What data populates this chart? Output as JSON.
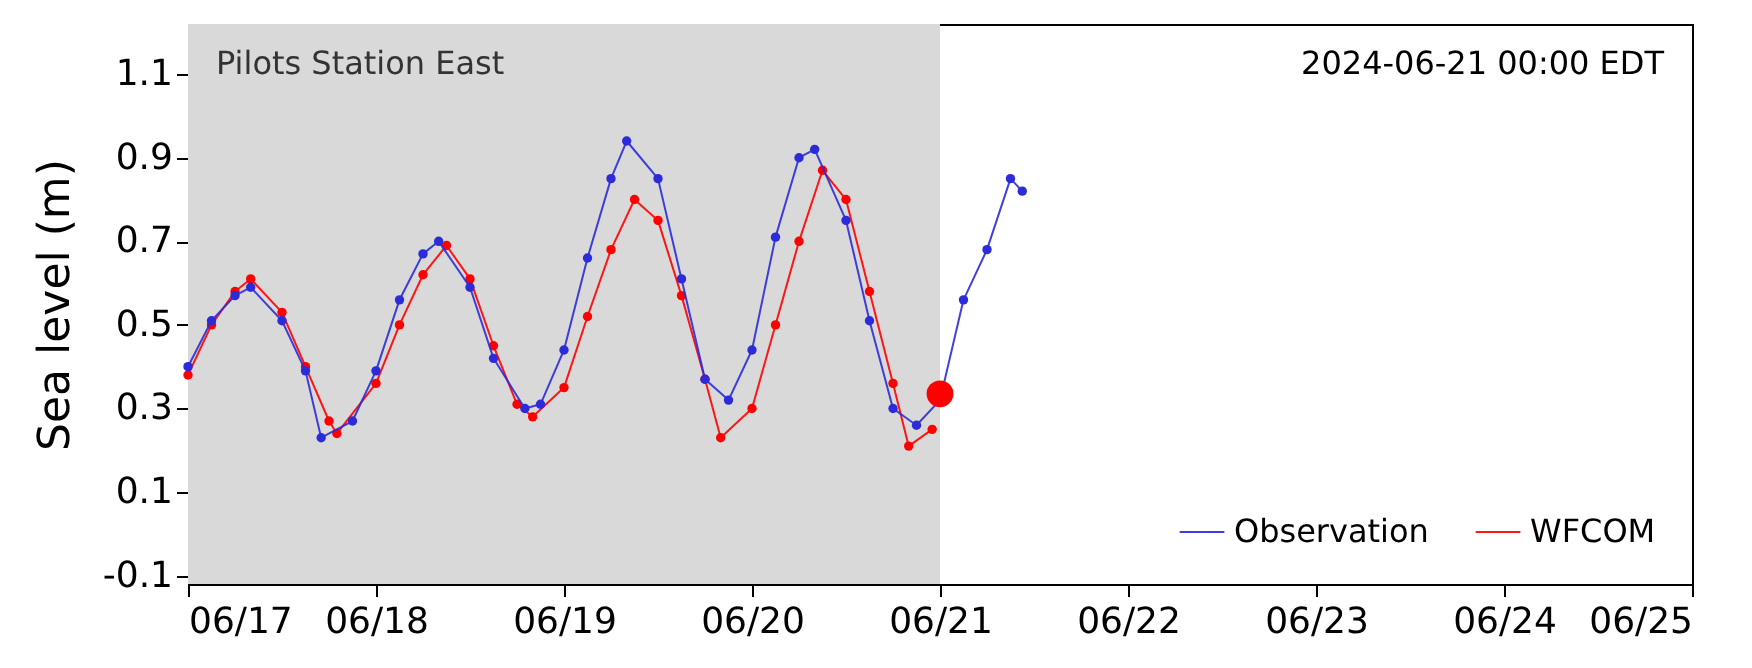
{
  "chart_data": {
    "type": "line",
    "ylabel": "Sea level (m)",
    "annotations": [
      "Pilots Station East",
      "2024-06-21 00:00 EDT"
    ],
    "xlim": [
      "2024-06-17T00:00",
      "2024-06-25T00:00"
    ],
    "xticks": [
      {
        "value": "2024-06-17T00:00",
        "label": "06/17"
      },
      {
        "value": "2024-06-18T00:00",
        "label": "06/18"
      },
      {
        "value": "2024-06-19T00:00",
        "label": "06/19"
      },
      {
        "value": "2024-06-20T00:00",
        "label": "06/20"
      },
      {
        "value": "2024-06-21T00:00",
        "label": "06/21"
      },
      {
        "value": "2024-06-22T00:00",
        "label": "06/22"
      },
      {
        "value": "2024-06-23T00:00",
        "label": "06/23"
      },
      {
        "value": "2024-06-24T00:00",
        "label": "06/24"
      },
      {
        "value": "2024-06-25T00:00",
        "label": "06/25"
      }
    ],
    "ylim": [
      -0.12,
      1.22
    ],
    "yticks": [
      -0.1,
      0.1,
      0.3,
      0.5,
      0.7,
      0.9,
      1.1
    ],
    "bands": [
      {
        "axis": "x",
        "from": "2024-06-17T00:00",
        "to": "2024-06-21T00:00",
        "color": "#d9d9d9"
      }
    ],
    "grid": false,
    "legend": "bottom right",
    "marker": "circle",
    "line_style": "solid",
    "series": [
      {
        "name": "Observation",
        "color": "#2b2bd9",
        "x": [
          "2024-06-17T00:00",
          "2024-06-17T03:00",
          "2024-06-17T06:00",
          "2024-06-17T08:00",
          "2024-06-17T12:00",
          "2024-06-17T15:00",
          "2024-06-17T17:00",
          "2024-06-17T21:00",
          "2024-06-18T00:00",
          "2024-06-18T03:00",
          "2024-06-18T06:00",
          "2024-06-18T08:00",
          "2024-06-18T12:00",
          "2024-06-18T15:00",
          "2024-06-18T19:00",
          "2024-06-18T21:00",
          "2024-06-19T00:00",
          "2024-06-19T03:00",
          "2024-06-19T06:00",
          "2024-06-19T08:00",
          "2024-06-19T12:00",
          "2024-06-19T15:00",
          "2024-06-19T18:00",
          "2024-06-19T21:00",
          "2024-06-20T00:00",
          "2024-06-20T03:00",
          "2024-06-20T06:00",
          "2024-06-20T08:00",
          "2024-06-20T12:00",
          "2024-06-20T15:00",
          "2024-06-20T18:00",
          "2024-06-20T21:00",
          "2024-06-21T00:00",
          "2024-06-21T03:00",
          "2024-06-21T06:00",
          "2024-06-21T09:00",
          "2024-06-21T10:30"
        ],
        "values": [
          0.4,
          0.51,
          0.57,
          0.59,
          0.51,
          0.39,
          0.23,
          0.27,
          0.39,
          0.56,
          0.67,
          0.7,
          0.59,
          0.42,
          0.3,
          0.31,
          0.44,
          0.66,
          0.85,
          0.94,
          0.85,
          0.61,
          0.37,
          0.32,
          0.44,
          0.71,
          0.9,
          0.92,
          0.75,
          0.51,
          0.3,
          0.26,
          0.32,
          0.56,
          0.68,
          0.85,
          0.82
        ]
      },
      {
        "name": "WFCOM",
        "color": "#ff0000",
        "x": [
          "2024-06-17T00:00",
          "2024-06-17T03:00",
          "2024-06-17T06:00",
          "2024-06-17T08:00",
          "2024-06-17T12:00",
          "2024-06-17T15:00",
          "2024-06-17T18:00",
          "2024-06-17T19:00",
          "2024-06-18T00:00",
          "2024-06-18T03:00",
          "2024-06-18T06:00",
          "2024-06-18T09:00",
          "2024-06-18T12:00",
          "2024-06-18T15:00",
          "2024-06-18T18:00",
          "2024-06-18T20:00",
          "2024-06-19T00:00",
          "2024-06-19T03:00",
          "2024-06-19T06:00",
          "2024-06-19T09:00",
          "2024-06-19T12:00",
          "2024-06-19T15:00",
          "2024-06-19T18:00",
          "2024-06-19T20:00",
          "2024-06-20T00:00",
          "2024-06-20T03:00",
          "2024-06-20T06:00",
          "2024-06-20T09:00",
          "2024-06-20T12:00",
          "2024-06-20T15:00",
          "2024-06-20T18:00",
          "2024-06-20T20:00",
          "2024-06-20T23:00"
        ],
        "values": [
          0.38,
          0.5,
          0.58,
          0.61,
          0.53,
          0.4,
          0.27,
          0.24,
          0.36,
          0.5,
          0.62,
          0.69,
          0.61,
          0.45,
          0.31,
          0.28,
          0.35,
          0.52,
          0.68,
          0.8,
          0.75,
          0.57,
          0.37,
          0.23,
          0.3,
          0.5,
          0.7,
          0.87,
          0.8,
          0.58,
          0.36,
          0.21,
          0.25
        ]
      },
      {
        "type": "scatter",
        "color": "#ff0000",
        "x": [
          "2024-06-21T00:00"
        ],
        "values": [
          0.335
        ]
      }
    ]
  }
}
